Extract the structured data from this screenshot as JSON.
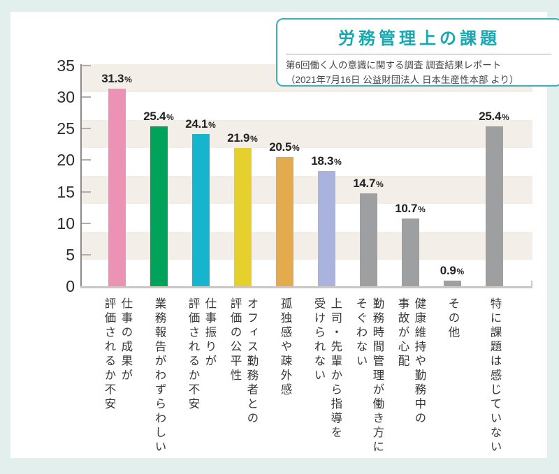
{
  "page": {
    "background_color": "#e3efed",
    "card_color": "#ffffff"
  },
  "title_box": {
    "title": "労務管理上の課題",
    "source_line1": "第6回働く人の意識に関する調査 調査結果レポート",
    "source_line2": "（2021年7月16日 公益財団法人 日本生産性本部 より）",
    "accent_color": "#17a9b1",
    "border_color": "#38b2b8"
  },
  "chart_data": {
    "type": "bar",
    "title": "労務管理上の課題",
    "categories": [
      "仕事の成果が\n評価されるか不安",
      "業務報告がわずらわしい",
      "仕事振りが\n評価されるか不安",
      "オフィス勤務者との\n評価の公平性",
      "孤独感や疎外感",
      "上司・先輩から指導を\n受けられない",
      "勤務時間管理が働き方に\nそぐわない",
      "健康維持や勤務中の\n事故が心配",
      "その他",
      "特に課題は感じていない"
    ],
    "values": [
      31.3,
      25.4,
      24.1,
      21.9,
      20.5,
      18.3,
      14.7,
      10.7,
      0.9,
      25.4
    ],
    "value_labels": [
      "31.3",
      "25.4",
      "24.1",
      "21.9",
      "20.5",
      "18.3",
      "14.7",
      "10.7",
      "0.9",
      "25.4"
    ],
    "unit": "%",
    "bar_colors": [
      "#ec92b5",
      "#00a359",
      "#17b4cd",
      "#e5d02e",
      "#e3ab4d",
      "#a9b3dd",
      "#9e9fa0",
      "#9e9fa0",
      "#9e9fa0",
      "#9e9fa0"
    ],
    "ylim": [
      0,
      35
    ],
    "yticks": [
      0,
      5,
      10,
      15,
      20,
      25,
      30,
      35
    ],
    "xlabel": "",
    "ylabel": "",
    "legend": "none",
    "grid": "striped-background",
    "stripe_color": "#f3efe8",
    "axis_color": "#8f8b88",
    "baseline_color": "#ccc7c2"
  }
}
